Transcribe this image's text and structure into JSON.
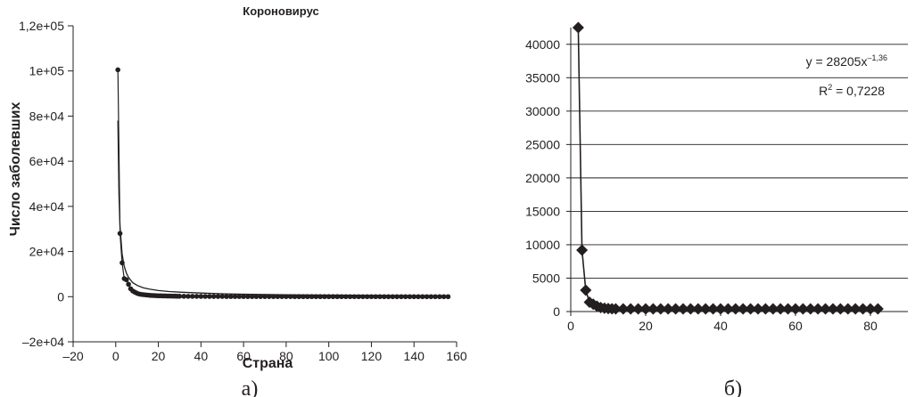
{
  "chart_data": [
    {
      "type": "scatter",
      "title": "Короновирус",
      "xlabel": "Страна",
      "ylabel": "Число заболевших",
      "caption": "а)",
      "xlim": [
        -20,
        160
      ],
      "ylim": [
        -20000,
        120000
      ],
      "xticks": [
        -20,
        0,
        20,
        40,
        60,
        80,
        100,
        120,
        140,
        160
      ],
      "yticks": [
        -20000,
        0,
        20000,
        40000,
        60000,
        80000,
        100000,
        120000
      ],
      "xtick_labels": [
        "–20",
        "0",
        "20",
        "40",
        "60",
        "80",
        "100",
        "120",
        "140",
        "160"
      ],
      "ytick_labels": [
        "–2e+04",
        "0",
        "2e+04",
        "4e+04",
        "6e+04",
        "8e+04",
        "1e+05",
        "1,2e+05"
      ],
      "points": {
        "x": [
          1,
          2,
          3,
          4,
          5,
          6,
          7,
          8,
          9,
          10,
          11,
          12,
          13,
          14,
          15,
          16,
          17,
          18,
          19,
          20,
          21,
          22,
          23,
          24,
          25,
          26,
          27,
          28,
          29,
          30,
          32,
          34,
          36,
          38,
          40,
          42,
          44,
          46,
          48,
          50,
          52,
          54,
          56,
          58,
          60,
          62,
          64,
          66,
          68,
          70,
          72,
          74,
          76,
          78,
          80,
          82,
          84,
          86,
          88,
          90,
          92,
          94,
          96,
          98,
          100,
          102,
          104,
          106,
          108,
          110,
          112,
          114,
          116,
          118,
          120,
          122,
          124,
          126,
          128,
          130,
          132,
          134,
          136,
          138,
          140,
          142,
          144,
          146,
          148,
          150,
          152,
          154,
          156
        ],
        "y": [
          100500,
          28000,
          15000,
          8000,
          7500,
          5500,
          3500,
          2500,
          2000,
          1500,
          1200,
          1000,
          900,
          800,
          700,
          600,
          550,
          500,
          450,
          400,
          380,
          350,
          330,
          300,
          280,
          260,
          240,
          220,
          200,
          190,
          170,
          150,
          140,
          130,
          120,
          110,
          100,
          95,
          90,
          85,
          80,
          75,
          70,
          65,
          60,
          55,
          50,
          48,
          46,
          44,
          42,
          40,
          38,
          36,
          34,
          32,
          30,
          29,
          28,
          27,
          26,
          25,
          24,
          23,
          22,
          21,
          20,
          19,
          18,
          17,
          16,
          15,
          14,
          13,
          12,
          11,
          10,
          9,
          8,
          7,
          6,
          5,
          5,
          4,
          4,
          3,
          3,
          2,
          2,
          2,
          1,
          1,
          1
        ]
      },
      "fit_curve": {
        "x": [
          1,
          1.5,
          2,
          3,
          4,
          5,
          6,
          8,
          10,
          13,
          16,
          20,
          25,
          30,
          40,
          50,
          60,
          80,
          100,
          120,
          140,
          156
        ],
        "y": [
          78000,
          45000,
          31000,
          19000,
          13500,
          10500,
          8500,
          6200,
          5000,
          3900,
          3300,
          2700,
          2300,
          2000,
          1600,
          1300,
          1100,
          850,
          700,
          600,
          520,
          470
        ]
      }
    },
    {
      "type": "scatter",
      "caption": "б)",
      "xlim": [
        0,
        90
      ],
      "ylim": [
        0,
        42500
      ],
      "xticks": [
        0,
        20,
        40,
        60,
        80
      ],
      "yticks": [
        0,
        5000,
        10000,
        15000,
        20000,
        25000,
        30000,
        35000,
        40000
      ],
      "xtick_labels": [
        "0",
        "20",
        "40",
        "60",
        "80"
      ],
      "ytick_labels": [
        "0",
        "5000",
        "10000",
        "15000",
        "20000",
        "25000",
        "30000",
        "35000",
        "40000"
      ],
      "grid": true,
      "trendline": {
        "equation": "y = 28205x",
        "exponent": "–1,36",
        "r2_prefix": "R",
        "r2_sup": "2",
        "r2_value": " = 0,7228"
      },
      "points": {
        "x": [
          2,
          3,
          4,
          5,
          6,
          7,
          8,
          9,
          10,
          11,
          12,
          14,
          16,
          18,
          20,
          22,
          24,
          26,
          28,
          30,
          32,
          34,
          36,
          38,
          40,
          42,
          44,
          46,
          48,
          50,
          52,
          54,
          56,
          58,
          60,
          62,
          64,
          66,
          68,
          70,
          72,
          74,
          76,
          78,
          80,
          82
        ],
        "y": [
          42500,
          9200,
          3200,
          1400,
          1100,
          800,
          600,
          500,
          450,
          420,
          400,
          400,
          400,
          400,
          400,
          400,
          400,
          400,
          400,
          400,
          400,
          400,
          400,
          400,
          400,
          400,
          400,
          400,
          400,
          400,
          400,
          400,
          400,
          400,
          400,
          400,
          400,
          400,
          400,
          400,
          400,
          400,
          400,
          400,
          400,
          400
        ]
      }
    }
  ]
}
